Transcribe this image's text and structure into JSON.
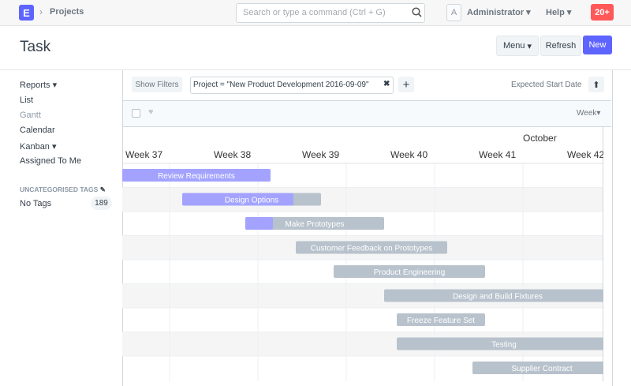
{
  "navbar": {
    "logo": "E",
    "breadcrumb": "Projects",
    "search_placeholder": "Search or type a command (Ctrl + G)",
    "avatar": "A",
    "user": "Administrator",
    "help": "Help",
    "notifications": "20+"
  },
  "page": {
    "title": "Task",
    "buttons": [
      "Menu",
      "Refresh",
      "New"
    ]
  },
  "sidebar": {
    "items": [
      "Reports",
      "List",
      "Gantt",
      "Calendar",
      "Kanban",
      "Assigned To Me"
    ],
    "tags_heading": "UNCATEGORISED TAGS",
    "tags": [
      {
        "name": "No Tags",
        "count": "189"
      }
    ]
  },
  "toolbar": {
    "show_filters": "Show Filters",
    "filter": "Project = \"New Product Development 2016-09-09\"",
    "sort": "Expected Start Date"
  },
  "gantt": {
    "view": "Week",
    "month": "October",
    "weeks": [
      "Week 37",
      "Week 38",
      "Week 39",
      "Week 40",
      "Week 41",
      "Week 42"
    ],
    "tasks": [
      "Review Requirements",
      "Design Options",
      "Make Prototypes",
      "Customer Feedback on Prototypes",
      "Product Engineering",
      "Design and Build Fixtures",
      "Freeze Feature Set",
      "Testing",
      "Supplier Contract"
    ]
  }
}
